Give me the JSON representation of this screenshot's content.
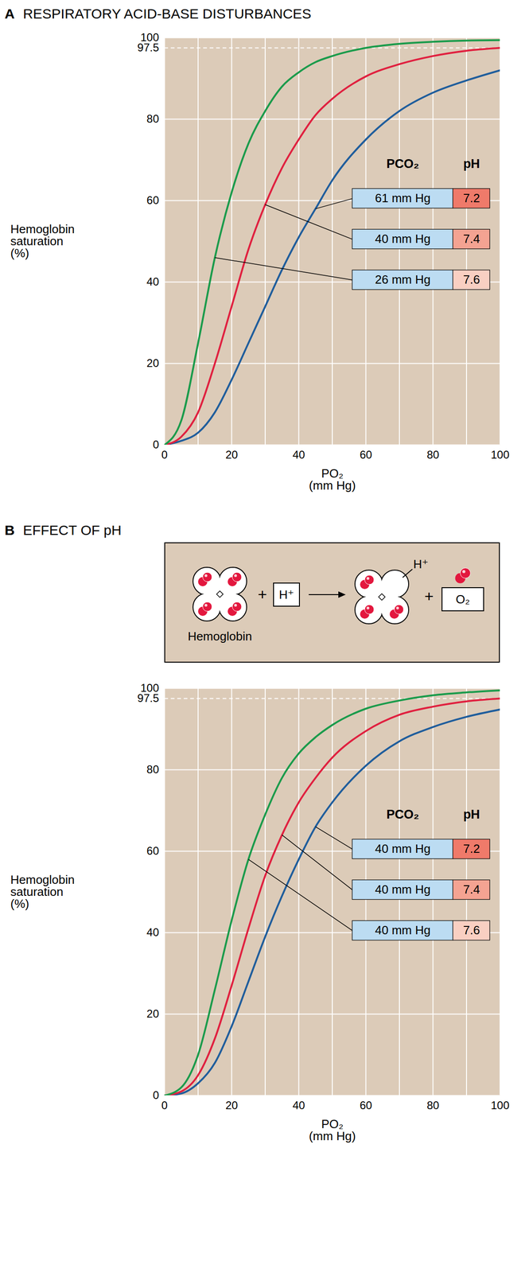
{
  "chart_data": [
    {
      "type": "line",
      "panel": "A",
      "title": "RESPIRATORY ACID-BASE DISTURBANCES",
      "x_label": "PO₂ (mm Hg)",
      "y_label": "Hemoglobin saturation (%)",
      "xlim": [
        0,
        100
      ],
      "ylim": [
        0,
        100
      ],
      "xticks": [
        0,
        20,
        40,
        60,
        80,
        100
      ],
      "yticks": [
        0,
        20,
        40,
        60,
        80,
        97.5,
        100
      ],
      "grid": true,
      "annotation_headers": [
        "PCO₂",
        "pH"
      ],
      "x": [
        0,
        5,
        10,
        15,
        20,
        25,
        30,
        35,
        40,
        45,
        50,
        60,
        70,
        80,
        90,
        100
      ],
      "series": [
        {
          "name": "61 mm Hg",
          "ph": 7.2,
          "color": "#1f5d9c",
          "values": [
            0,
            1,
            3,
            8,
            16,
            25,
            34,
            43,
            51,
            58,
            65,
            75,
            82,
            86.5,
            89.5,
            92
          ]
        },
        {
          "name": "40 mm Hg",
          "ph": 7.4,
          "color": "#e0203f",
          "values": [
            0,
            2,
            8,
            20,
            34,
            48,
            59,
            68,
            75,
            81,
            85,
            90.5,
            93.5,
            95.5,
            96.8,
            97.5
          ]
        },
        {
          "name": "26 mm Hg",
          "ph": 7.6,
          "color": "#1a9b4b",
          "values": [
            0,
            6,
            25,
            46,
            62,
            74,
            82,
            88,
            91.5,
            94,
            95.5,
            97.5,
            98.5,
            99,
            99.3,
            99.4
          ]
        }
      ]
    },
    {
      "type": "line",
      "panel": "B",
      "title": "EFFECT OF pH",
      "x_label": "PO₂ (mm Hg)",
      "y_label": "Hemoglobin saturation (%)",
      "xlim": [
        0,
        100
      ],
      "ylim": [
        0,
        100
      ],
      "xticks": [
        0,
        20,
        40,
        60,
        80,
        100
      ],
      "yticks": [
        0,
        20,
        40,
        60,
        80,
        97.5,
        100
      ],
      "grid": true,
      "annotation_headers": [
        "PCO₂",
        "pH"
      ],
      "inset": {
        "reactant": "Hemoglobin",
        "plus": "+",
        "ion": "H⁺",
        "bound_ion": "H⁺",
        "product": "O₂"
      },
      "x": [
        0,
        5,
        10,
        15,
        20,
        25,
        30,
        35,
        40,
        45,
        50,
        60,
        70,
        80,
        90,
        100
      ],
      "series": [
        {
          "name": "40 mm Hg",
          "ph": 7.2,
          "color": "#1f5d9c",
          "values": [
            0,
            0.5,
            3,
            8,
            17,
            28,
            39,
            49,
            58,
            66,
            72,
            81,
            87,
            90.5,
            93,
            94.8
          ]
        },
        {
          "name": "40 mm Hg",
          "ph": 7.4,
          "color": "#e0203f",
          "values": [
            0,
            1,
            5,
            14,
            27,
            41,
            54,
            64,
            72,
            78,
            83,
            89.5,
            93.5,
            95.5,
            96.8,
            97.5
          ]
        },
        {
          "name": "40 mm Hg",
          "ph": 7.6,
          "color": "#1a9b4b",
          "values": [
            0,
            2,
            10,
            26,
            43,
            58,
            69,
            78,
            84,
            88,
            91,
            95,
            97,
            98.3,
            99,
            99.5
          ]
        }
      ]
    }
  ]
}
